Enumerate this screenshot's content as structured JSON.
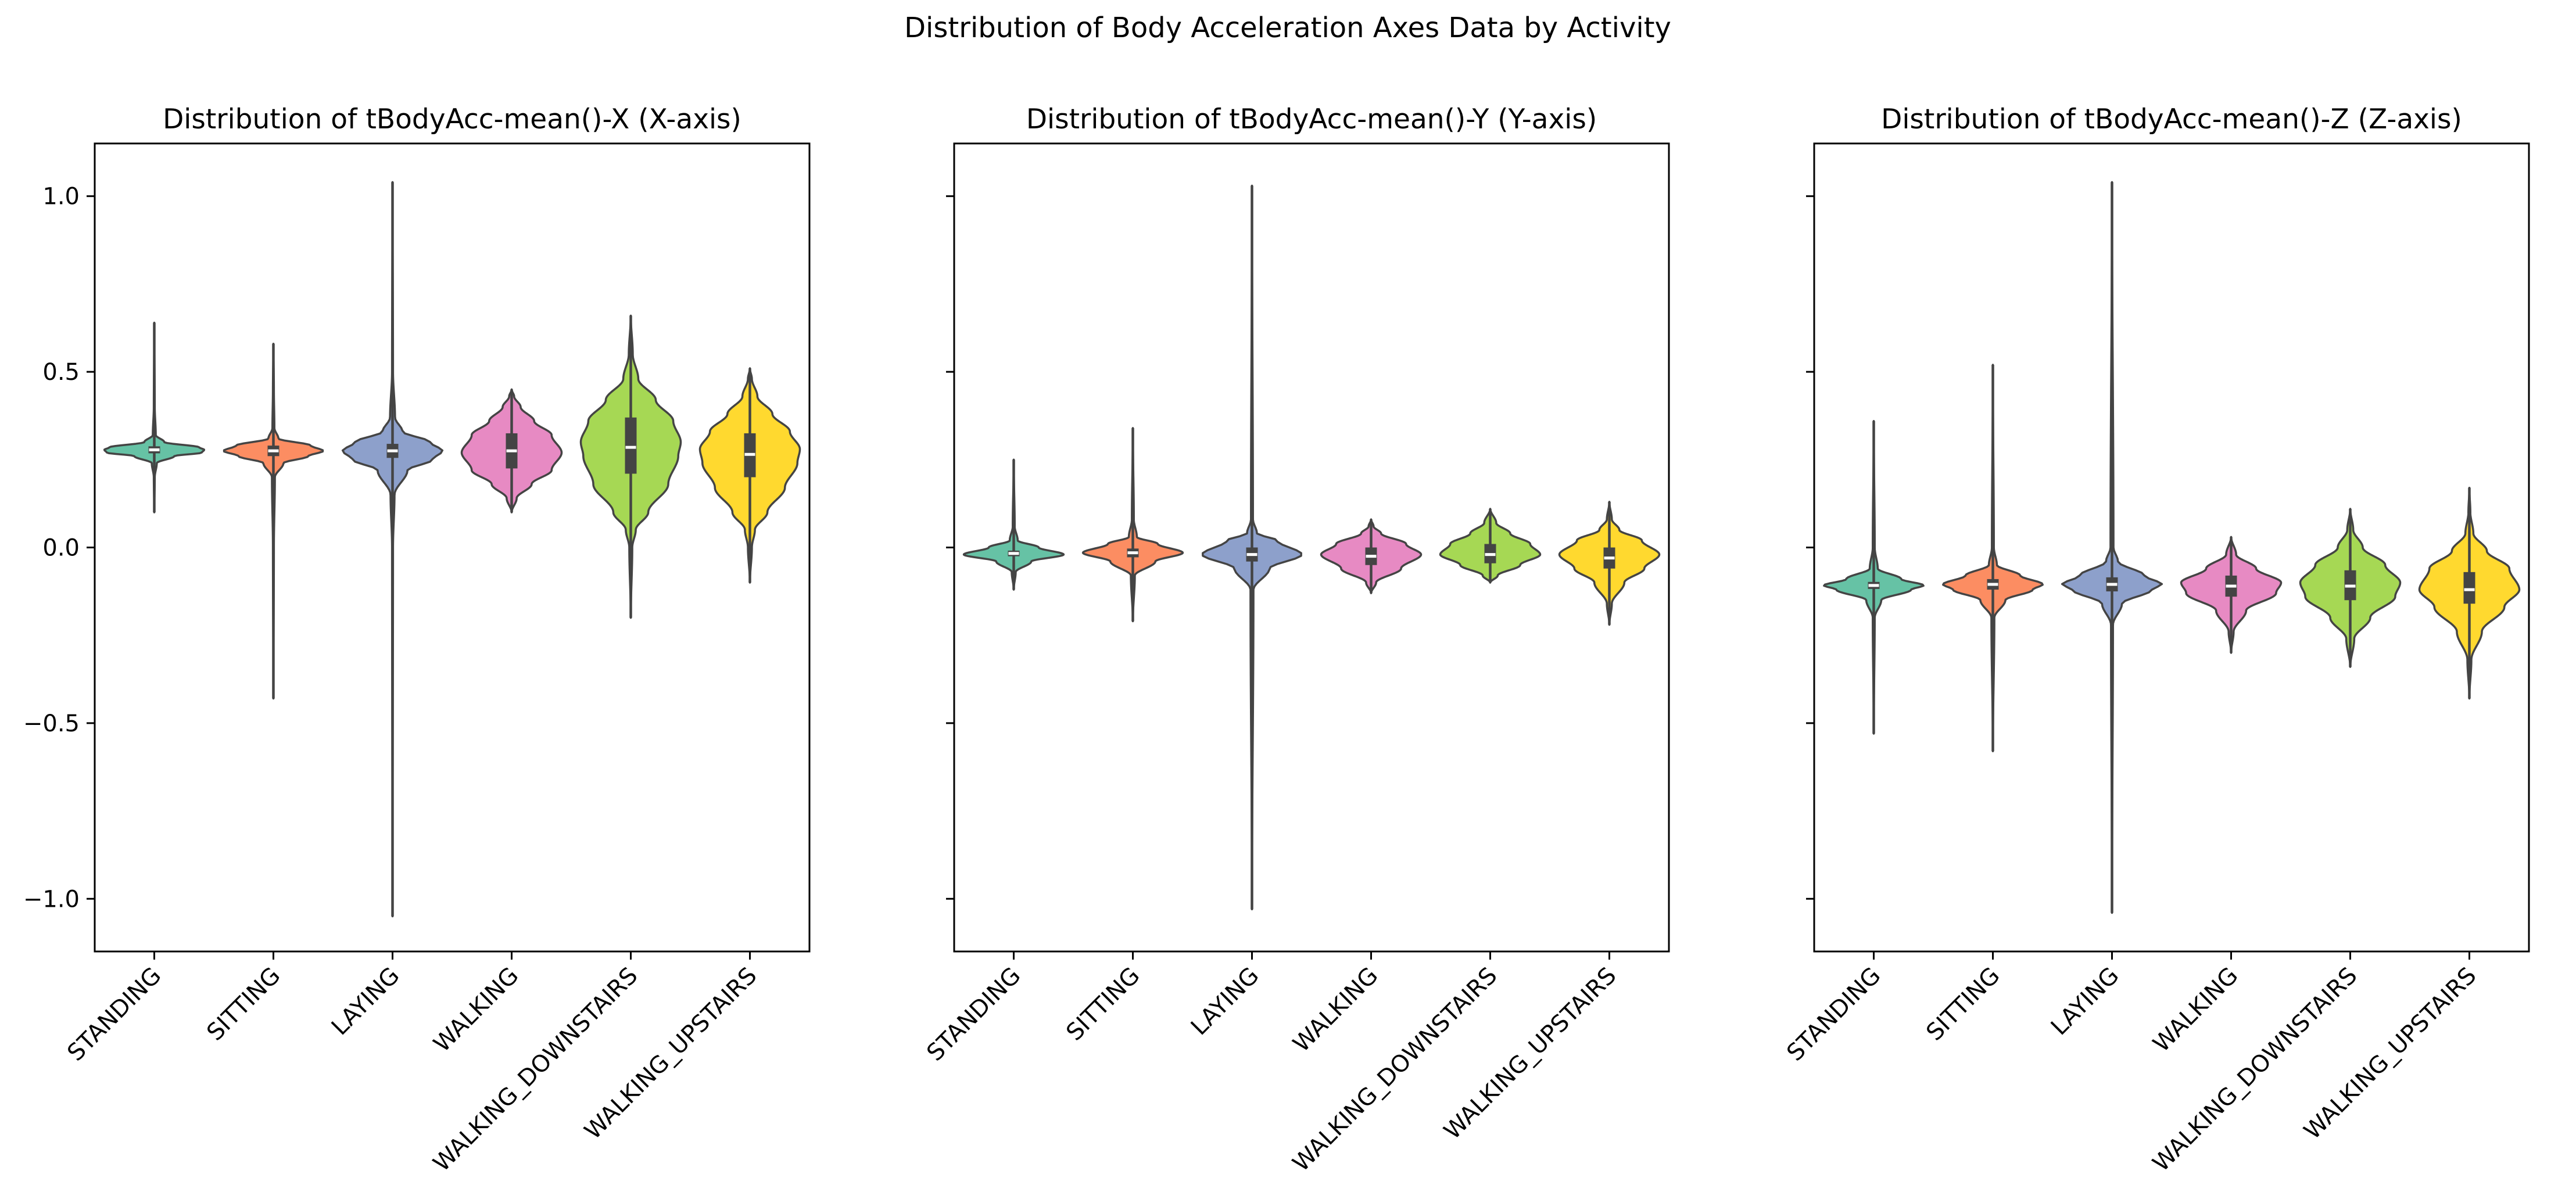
{
  "chart_data": {
    "type": "violin",
    "title": "Distribution of Body Acceleration Axes Data by Activity",
    "categories": [
      "STANDING",
      "SITTING",
      "LAYING",
      "WALKING",
      "WALKING_DOWNSTAIRS",
      "WALKING_UPSTAIRS"
    ],
    "colors": [
      "#66c2a5",
      "#fc8d62",
      "#8da0cb",
      "#e78ac3",
      "#a6d854",
      "#ffd92f"
    ],
    "ylim": [
      -1.15,
      1.15
    ],
    "yticks": [
      1.0,
      0.5,
      0.0,
      -0.5,
      -1.0
    ],
    "ytick_labels": [
      "1.0",
      "0.5",
      "0.0",
      "−0.5",
      "−1.0"
    ],
    "shared_y": true,
    "grid": false,
    "panels": [
      {
        "title": "Distribution of tBodyAcc-mean()-X (X-axis)",
        "violins": [
          {
            "category": "STANDING",
            "min": 0.1,
            "max": 0.64,
            "q1": 0.268,
            "median": 0.278,
            "q3": 0.288,
            "width_profile": [
              [
                0.1,
                0.0
              ],
              [
                0.2,
                0.01
              ],
              [
                0.24,
                0.05
              ],
              [
                0.26,
                0.4
              ],
              [
                0.27,
                0.95
              ],
              [
                0.278,
                1.0
              ],
              [
                0.285,
                0.9
              ],
              [
                0.3,
                0.2
              ],
              [
                0.32,
                0.03
              ],
              [
                0.4,
                0.01
              ],
              [
                0.64,
                0.0
              ]
            ]
          },
          {
            "category": "SITTING",
            "min": -0.43,
            "max": 0.58,
            "q1": 0.26,
            "median": 0.275,
            "q3": 0.29,
            "width_profile": [
              [
                -0.43,
                0.0
              ],
              [
                0.0,
                0.01
              ],
              [
                0.2,
                0.03
              ],
              [
                0.24,
                0.2
              ],
              [
                0.26,
                0.7
              ],
              [
                0.275,
                1.0
              ],
              [
                0.29,
                0.75
              ],
              [
                0.31,
                0.1
              ],
              [
                0.34,
                0.02
              ],
              [
                0.45,
                0.01
              ],
              [
                0.58,
                0.0
              ]
            ]
          },
          {
            "category": "LAYING",
            "min": -1.05,
            "max": 1.04,
            "q1": 0.255,
            "median": 0.275,
            "q3": 0.295,
            "width_profile": [
              [
                -1.05,
                0.0
              ],
              [
                0.0,
                0.01
              ],
              [
                0.15,
                0.04
              ],
              [
                0.22,
                0.3
              ],
              [
                0.25,
                0.8
              ],
              [
                0.275,
                1.0
              ],
              [
                0.3,
                0.75
              ],
              [
                0.33,
                0.2
              ],
              [
                0.37,
                0.05
              ],
              [
                0.5,
                0.01
              ],
              [
                1.04,
                0.0
              ]
            ]
          },
          {
            "category": "WALKING",
            "min": 0.1,
            "max": 0.45,
            "q1": 0.225,
            "median": 0.275,
            "q3": 0.325,
            "width_profile": [
              [
                0.1,
                0.0
              ],
              [
                0.14,
                0.1
              ],
              [
                0.18,
                0.4
              ],
              [
                0.22,
                0.8
              ],
              [
                0.27,
                1.0
              ],
              [
                0.32,
                0.8
              ],
              [
                0.36,
                0.45
              ],
              [
                0.4,
                0.18
              ],
              [
                0.43,
                0.05
              ],
              [
                0.45,
                0.0
              ]
            ]
          },
          {
            "category": "WALKING_DOWNSTAIRS",
            "min": -0.2,
            "max": 0.66,
            "q1": 0.21,
            "median": 0.285,
            "q3": 0.37,
            "width_profile": [
              [
                -0.2,
                0.0
              ],
              [
                0.0,
                0.03
              ],
              [
                0.05,
                0.1
              ],
              [
                0.1,
                0.35
              ],
              [
                0.18,
                0.75
              ],
              [
                0.26,
                0.95
              ],
              [
                0.3,
                1.0
              ],
              [
                0.36,
                0.85
              ],
              [
                0.42,
                0.5
              ],
              [
                0.48,
                0.15
              ],
              [
                0.55,
                0.04
              ],
              [
                0.66,
                0.0
              ]
            ]
          },
          {
            "category": "WALKING_UPSTAIRS",
            "min": -0.1,
            "max": 0.51,
            "q1": 0.2,
            "median": 0.265,
            "q3": 0.325,
            "width_profile": [
              [
                -0.1,
                0.0
              ],
              [
                0.0,
                0.04
              ],
              [
                0.05,
                0.1
              ],
              [
                0.1,
                0.35
              ],
              [
                0.17,
                0.7
              ],
              [
                0.24,
                0.95
              ],
              [
                0.28,
                1.0
              ],
              [
                0.33,
                0.8
              ],
              [
                0.38,
                0.45
              ],
              [
                0.43,
                0.15
              ],
              [
                0.48,
                0.04
              ],
              [
                0.51,
                0.0
              ]
            ]
          }
        ]
      },
      {
        "title": "Distribution of tBodyAcc-mean()-Y (Y-axis)",
        "violins": [
          {
            "category": "STANDING",
            "min": -0.12,
            "max": 0.25,
            "q1": -0.025,
            "median": -0.017,
            "q3": -0.009,
            "width_profile": [
              [
                -0.12,
                0.0
              ],
              [
                -0.07,
                0.04
              ],
              [
                -0.04,
                0.35
              ],
              [
                -0.02,
                1.0
              ],
              [
                0.0,
                0.5
              ],
              [
                0.02,
                0.08
              ],
              [
                0.06,
                0.02
              ],
              [
                0.25,
                0.0
              ]
            ]
          },
          {
            "category": "SITTING",
            "min": -0.21,
            "max": 0.34,
            "q1": -0.028,
            "median": -0.015,
            "q3": -0.003,
            "width_profile": [
              [
                -0.21,
                0.0
              ],
              [
                -0.08,
                0.04
              ],
              [
                -0.04,
                0.45
              ],
              [
                -0.015,
                1.0
              ],
              [
                0.01,
                0.5
              ],
              [
                0.03,
                0.08
              ],
              [
                0.08,
                0.02
              ],
              [
                0.34,
                0.0
              ]
            ]
          },
          {
            "category": "LAYING",
            "min": -1.03,
            "max": 1.03,
            "q1": -0.04,
            "median": -0.02,
            "q3": 0.0,
            "width_profile": [
              [
                -1.03,
                0.0
              ],
              [
                -0.12,
                0.03
              ],
              [
                -0.06,
                0.35
              ],
              [
                -0.02,
                1.0
              ],
              [
                0.02,
                0.5
              ],
              [
                0.04,
                0.1
              ],
              [
                0.08,
                0.02
              ],
              [
                1.03,
                0.0
              ]
            ]
          },
          {
            "category": "WALKING",
            "min": -0.13,
            "max": 0.08,
            "q1": -0.05,
            "median": -0.025,
            "q3": 0.0,
            "width_profile": [
              [
                -0.13,
                0.0
              ],
              [
                -0.1,
                0.1
              ],
              [
                -0.06,
                0.6
              ],
              [
                -0.02,
                1.0
              ],
              [
                0.01,
                0.7
              ],
              [
                0.04,
                0.2
              ],
              [
                0.06,
                0.05
              ],
              [
                0.08,
                0.0
              ]
            ]
          },
          {
            "category": "WALKING_DOWNSTAIRS",
            "min": -0.1,
            "max": 0.11,
            "q1": -0.045,
            "median": -0.02,
            "q3": 0.01,
            "width_profile": [
              [
                -0.1,
                0.0
              ],
              [
                -0.08,
                0.15
              ],
              [
                -0.05,
                0.6
              ],
              [
                -0.02,
                1.0
              ],
              [
                0.01,
                0.8
              ],
              [
                0.04,
                0.4
              ],
              [
                0.07,
                0.12
              ],
              [
                0.11,
                0.0
              ]
            ]
          },
          {
            "category": "WALKING_UPSTAIRS",
            "min": -0.22,
            "max": 0.13,
            "q1": -0.06,
            "median": -0.03,
            "q3": 0.0,
            "width_profile": [
              [
                -0.22,
                0.0
              ],
              [
                -0.16,
                0.05
              ],
              [
                -0.1,
                0.3
              ],
              [
                -0.06,
                0.7
              ],
              [
                -0.02,
                1.0
              ],
              [
                0.02,
                0.65
              ],
              [
                0.05,
                0.2
              ],
              [
                0.08,
                0.05
              ],
              [
                0.13,
                0.0
              ]
            ]
          }
        ]
      },
      {
        "title": "Distribution of tBodyAcc-mean()-Z (Z-axis)",
        "violins": [
          {
            "category": "STANDING",
            "min": -0.53,
            "max": 0.36,
            "q1": -0.118,
            "median": -0.108,
            "q3": -0.098,
            "width_profile": [
              [
                -0.53,
                0.0
              ],
              [
                -0.2,
                0.02
              ],
              [
                -0.15,
                0.15
              ],
              [
                -0.12,
                0.75
              ],
              [
                -0.108,
                1.0
              ],
              [
                -0.09,
                0.55
              ],
              [
                -0.06,
                0.08
              ],
              [
                0.0,
                0.02
              ],
              [
                0.36,
                0.0
              ]
            ]
          },
          {
            "category": "SITTING",
            "min": -0.58,
            "max": 0.52,
            "q1": -0.12,
            "median": -0.105,
            "q3": -0.09,
            "width_profile": [
              [
                -0.58,
                0.0
              ],
              [
                -0.2,
                0.03
              ],
              [
                -0.15,
                0.25
              ],
              [
                -0.12,
                0.8
              ],
              [
                -0.105,
                1.0
              ],
              [
                -0.08,
                0.55
              ],
              [
                -0.05,
                0.08
              ],
              [
                0.0,
                0.02
              ],
              [
                0.52,
                0.0
              ]
            ]
          },
          {
            "category": "LAYING",
            "min": -1.04,
            "max": 1.04,
            "q1": -0.125,
            "median": -0.105,
            "q3": -0.085,
            "width_profile": [
              [
                -1.04,
                0.0
              ],
              [
                -0.22,
                0.02
              ],
              [
                -0.16,
                0.2
              ],
              [
                -0.12,
                0.8
              ],
              [
                -0.105,
                1.0
              ],
              [
                -0.08,
                0.65
              ],
              [
                -0.04,
                0.12
              ],
              [
                0.0,
                0.03
              ],
              [
                1.04,
                0.0
              ]
            ]
          },
          {
            "category": "WALKING",
            "min": -0.3,
            "max": 0.03,
            "q1": -0.14,
            "median": -0.11,
            "q3": -0.08,
            "width_profile": [
              [
                -0.3,
                0.0
              ],
              [
                -0.24,
                0.05
              ],
              [
                -0.18,
                0.3
              ],
              [
                -0.13,
                0.9
              ],
              [
                -0.1,
                1.0
              ],
              [
                -0.06,
                0.5
              ],
              [
                -0.02,
                0.1
              ],
              [
                0.03,
                0.0
              ]
            ]
          },
          {
            "category": "WALKING_DOWNSTAIRS",
            "min": -0.34,
            "max": 0.11,
            "q1": -0.15,
            "median": -0.11,
            "q3": -0.065,
            "width_profile": [
              [
                -0.34,
                0.0
              ],
              [
                -0.26,
                0.08
              ],
              [
                -0.2,
                0.4
              ],
              [
                -0.14,
                0.9
              ],
              [
                -0.1,
                1.0
              ],
              [
                -0.05,
                0.7
              ],
              [
                0.0,
                0.25
              ],
              [
                0.05,
                0.06
              ],
              [
                0.11,
                0.0
              ]
            ]
          },
          {
            "category": "WALKING_UPSTAIRS",
            "min": -0.43,
            "max": 0.17,
            "q1": -0.16,
            "median": -0.12,
            "q3": -0.07,
            "width_profile": [
              [
                -0.43,
                0.0
              ],
              [
                -0.32,
                0.04
              ],
              [
                -0.24,
                0.25
              ],
              [
                -0.17,
                0.7
              ],
              [
                -0.12,
                1.0
              ],
              [
                -0.06,
                0.8
              ],
              [
                -0.01,
                0.35
              ],
              [
                0.04,
                0.08
              ],
              [
                0.1,
                0.02
              ],
              [
                0.17,
                0.0
              ]
            ]
          }
        ]
      }
    ]
  }
}
